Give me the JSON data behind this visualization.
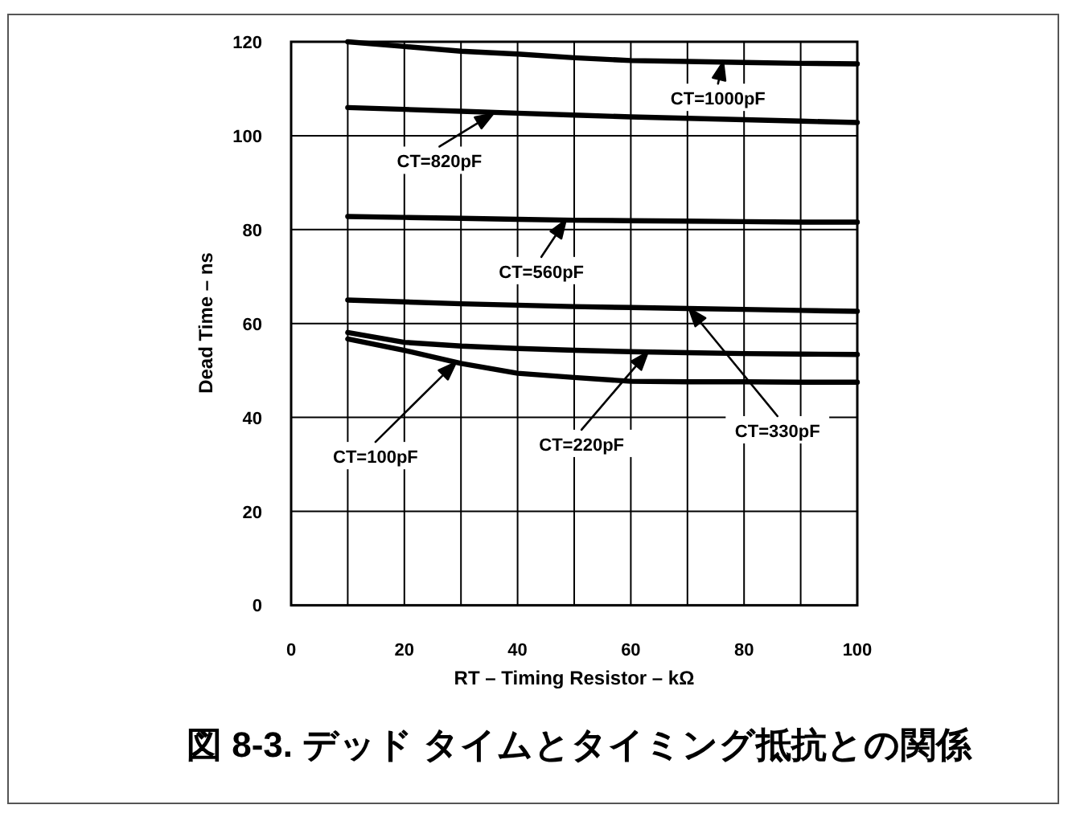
{
  "chart_data": {
    "type": "line",
    "title": "図 8-3. デッド タイムとタイミング抵抗との関係",
    "xlabel": "RT – Timing Resistor – kΩ",
    "ylabel": "Dead Time – ns",
    "x": [
      10,
      20,
      30,
      40,
      50,
      60,
      70,
      80,
      90,
      100
    ],
    "series": [
      {
        "color": "#000000",
        "values": [
          120,
          119,
          118,
          117.4,
          116.6,
          116,
          115.8,
          115.6,
          115.4,
          115.3
        ]
      },
      {
        "color": "#000000",
        "values": [
          106,
          105.6,
          105.2,
          104.8,
          104.4,
          104,
          103.7,
          103.4,
          103.1,
          102.8
        ]
      },
      {
        "color": "#000000",
        "values": [
          82.8,
          82.6,
          82.4,
          82.2,
          82,
          81.9,
          81.8,
          81.7,
          81.6,
          81.6
        ]
      },
      {
        "color": "#000000",
        "values": [
          65,
          64.6,
          64.2,
          63.9,
          63.6,
          63.4,
          63.2,
          63,
          62.8,
          62.6
        ]
      },
      {
        "color": "#000000",
        "values": [
          58.1,
          56,
          55.2,
          54.7,
          54.3,
          54,
          53.8,
          53.6,
          53.5,
          53.4
        ]
      },
      {
        "color": "#000000",
        "values": [
          56.7,
          54.3,
          51.5,
          49.4,
          48.5,
          47.7,
          47.6,
          47.6,
          47.5,
          47.5
        ]
      }
    ],
    "annotations": [
      {
        "text": "CT=1000pF",
        "x": 76.3,
        "y": 115.7
      },
      {
        "text": "CT=820pF",
        "x": 35.7,
        "y": 104.7
      },
      {
        "text": "CT=560pF",
        "x": 48.5,
        "y": 82
      },
      "CT=330pF",
      "CT=220pF",
      "CT=100pF"
    ],
    "xlim": [
      0,
      100
    ],
    "xticks": [
      0,
      {
        "value": 10,
        "label": null
      },
      20,
      {
        "value": 30,
        "label": null
      },
      40,
      {
        "value": 50,
        "label": null
      },
      60,
      {
        "value": 70,
        "label": null
      },
      80,
      {
        "value": 90,
        "label": null
      },
      100
    ],
    "ylim": [
      0,
      120
    ],
    "yticks": [
      0,
      20,
      40,
      60,
      80,
      100,
      120
    ],
    "grid": true,
    "marker": "none",
    "line_style": "solid"
  }
}
